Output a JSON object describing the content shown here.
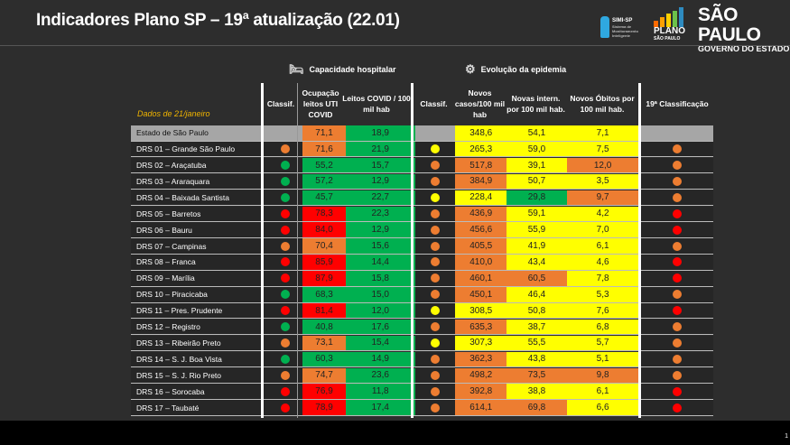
{
  "title": "Indicadores Plano SP – 19ª atualização (22.01)",
  "logos": {
    "simi": {
      "title": "SIMI-SP",
      "subtitle": "Sistema de Monitoramento Inteligente"
    },
    "plano": {
      "title": "PLANO",
      "subtitle": "SÃO PAULO"
    },
    "sp": {
      "title": "SÃO PAULO",
      "subtitle": "GOVERNO DO ESTADO"
    }
  },
  "sections": {
    "hospital": "Capacidade hospitalar",
    "epidemia": "Evolução da epidemia"
  },
  "date_label": "Dados de 21/janeiro",
  "headers": [
    "Classif.",
    "Ocupação leitos UTI COVID",
    "Leitos COVID / 100 mil hab",
    "Classif.",
    "Novos casos/100 mil hab",
    "Novas intern. por 100 mil hab.",
    "Novos Óbitos por 100 mil hab.",
    "19ª Classificação"
  ],
  "colors": {
    "G": "#00b050",
    "O": "#ed7d31",
    "R": "#ff0000",
    "Y": "#ffff00",
    "N": "#a6a6a6"
  },
  "rows": [
    {
      "name": "Estado de São Paulo",
      "c1": "",
      "ocup": "71,1",
      "oc": "O",
      "leitos": "18,9",
      "lc": "G",
      "c2": "",
      "casos": "348,6",
      "cc": "Y",
      "intern": "54,1",
      "ic": "Y",
      "obitos": "7,1",
      "obc": "Y",
      "final": "",
      "state": true
    },
    {
      "name": "DRS 01 – Grande São Paulo",
      "c1": "O",
      "ocup": "71,6",
      "oc": "O",
      "leitos": "21,9",
      "lc": "G",
      "c2": "Y",
      "casos": "265,3",
      "cc": "Y",
      "intern": "59,0",
      "ic": "Y",
      "obitos": "7,5",
      "obc": "Y",
      "final": "O"
    },
    {
      "name": "DRS 02 – Araçatuba",
      "c1": "G",
      "ocup": "55,2",
      "oc": "G",
      "leitos": "15,7",
      "lc": "G",
      "c2": "O",
      "casos": "517,8",
      "cc": "O",
      "intern": "39,1",
      "ic": "Y",
      "obitos": "12,0",
      "obc": "O",
      "final": "O"
    },
    {
      "name": "DRS 03 – Araraquara",
      "c1": "G",
      "ocup": "57,2",
      "oc": "G",
      "leitos": "12,9",
      "lc": "G",
      "c2": "O",
      "casos": "384,9",
      "cc": "O",
      "intern": "50,7",
      "ic": "Y",
      "obitos": "3,5",
      "obc": "Y",
      "final": "O"
    },
    {
      "name": "DRS 04 – Baixada Santista",
      "c1": "G",
      "ocup": "45,7",
      "oc": "G",
      "leitos": "22,7",
      "lc": "G",
      "c2": "Y",
      "casos": "228,4",
      "cc": "Y",
      "intern": "29,8",
      "ic": "G",
      "obitos": "9,7",
      "obc": "O",
      "final": "O"
    },
    {
      "name": "DRS 05 – Barretos",
      "c1": "R",
      "ocup": "78,3",
      "oc": "R",
      "leitos": "22,3",
      "lc": "G",
      "c2": "O",
      "casos": "436,9",
      "cc": "O",
      "intern": "59,1",
      "ic": "Y",
      "obitos": "4,2",
      "obc": "Y",
      "final": "R"
    },
    {
      "name": "DRS 06 – Bauru",
      "c1": "R",
      "ocup": "84,0",
      "oc": "R",
      "leitos": "12,9",
      "lc": "G",
      "c2": "O",
      "casos": "456,6",
      "cc": "O",
      "intern": "55,9",
      "ic": "Y",
      "obitos": "7,0",
      "obc": "Y",
      "final": "R"
    },
    {
      "name": "DRS 07 – Campinas",
      "c1": "O",
      "ocup": "70,4",
      "oc": "O",
      "leitos": "15,6",
      "lc": "G",
      "c2": "O",
      "casos": "405,5",
      "cc": "O",
      "intern": "41,9",
      "ic": "Y",
      "obitos": "6,1",
      "obc": "Y",
      "final": "O"
    },
    {
      "name": "DRS 08 – Franca",
      "c1": "R",
      "ocup": "85,9",
      "oc": "R",
      "leitos": "14,4",
      "lc": "G",
      "c2": "O",
      "casos": "410,0",
      "cc": "O",
      "intern": "43,4",
      "ic": "Y",
      "obitos": "4,6",
      "obc": "Y",
      "final": "R"
    },
    {
      "name": "DRS 09 – Marília",
      "c1": "R",
      "ocup": "87,9",
      "oc": "R",
      "leitos": "15,8",
      "lc": "G",
      "c2": "O",
      "casos": "460,1",
      "cc": "O",
      "intern": "60,5",
      "ic": "O",
      "obitos": "7,8",
      "obc": "Y",
      "final": "R"
    },
    {
      "name": "DRS 10 – Piracicaba",
      "c1": "G",
      "ocup": "68,3",
      "oc": "G",
      "leitos": "15,0",
      "lc": "G",
      "c2": "O",
      "casos": "450,1",
      "cc": "O",
      "intern": "46,4",
      "ic": "Y",
      "obitos": "5,3",
      "obc": "Y",
      "final": "O"
    },
    {
      "name": "DRS 11 – Pres. Prudente",
      "c1": "R",
      "ocup": "81,4",
      "oc": "R",
      "leitos": "12,0",
      "lc": "G",
      "c2": "Y",
      "casos": "308,5",
      "cc": "Y",
      "intern": "50,8",
      "ic": "Y",
      "obitos": "7,6",
      "obc": "Y",
      "final": "R"
    },
    {
      "name": "DRS 12 – Registro",
      "c1": "G",
      "ocup": "40,8",
      "oc": "G",
      "leitos": "17,6",
      "lc": "G",
      "c2": "O",
      "casos": "635,3",
      "cc": "O",
      "intern": "38,7",
      "ic": "Y",
      "obitos": "6,8",
      "obc": "Y",
      "final": "O"
    },
    {
      "name": "DRS 13 – Ribeirão Preto",
      "c1": "O",
      "ocup": "73,1",
      "oc": "O",
      "leitos": "15,4",
      "lc": "G",
      "c2": "Y",
      "casos": "307,3",
      "cc": "Y",
      "intern": "55,5",
      "ic": "Y",
      "obitos": "5,7",
      "obc": "Y",
      "final": "O"
    },
    {
      "name": "DRS 14 – S. J. Boa Vista",
      "c1": "G",
      "ocup": "60,3",
      "oc": "G",
      "leitos": "14,9",
      "lc": "G",
      "c2": "O",
      "casos": "362,3",
      "cc": "O",
      "intern": "43,8",
      "ic": "Y",
      "obitos": "5,1",
      "obc": "Y",
      "final": "O"
    },
    {
      "name": "DRS 15 – S. J. Rio Preto",
      "c1": "O",
      "ocup": "74,7",
      "oc": "O",
      "leitos": "23,6",
      "lc": "G",
      "c2": "O",
      "casos": "498,2",
      "cc": "O",
      "intern": "73,5",
      "ic": "O",
      "obitos": "9,8",
      "obc": "O",
      "final": "O"
    },
    {
      "name": "DRS 16 – Sorocaba",
      "c1": "R",
      "ocup": "76,9",
      "oc": "R",
      "leitos": "11,8",
      "lc": "G",
      "c2": "O",
      "casos": "392,8",
      "cc": "O",
      "intern": "38,8",
      "ic": "Y",
      "obitos": "6,1",
      "obc": "Y",
      "final": "R"
    },
    {
      "name": "DRS 17 – Taubaté",
      "c1": "R",
      "ocup": "78,9",
      "oc": "R",
      "leitos": "17,4",
      "lc": "G",
      "c2": "O",
      "casos": "614,1",
      "cc": "O",
      "intern": "69,8",
      "ic": "O",
      "obitos": "6,6",
      "obc": "Y",
      "final": "R"
    }
  ],
  "page_number": "1"
}
